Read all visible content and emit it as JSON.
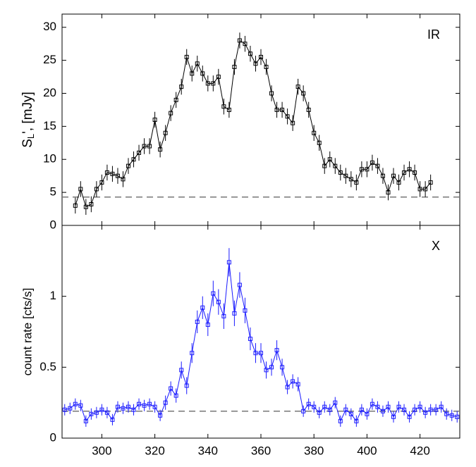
{
  "chart_data": [
    {
      "type": "line",
      "annotation": "IR",
      "ylabel": {
        "main": "S",
        "sub": "L",
        "rest": "', [mJy]"
      },
      "xlim": [
        285,
        435
      ],
      "xticks": [
        300,
        320,
        340,
        360,
        380,
        400,
        420
      ],
      "show_xtick_labels": false,
      "ylim": [
        0,
        32
      ],
      "yticks": [
        0,
        5,
        10,
        15,
        20,
        25,
        30
      ],
      "baseline": 4.3,
      "series": [
        {
          "name": "IR",
          "color": "#000000",
          "x": [
            290,
            292,
            294,
            296,
            298,
            300,
            302,
            304,
            306,
            308,
            310,
            312,
            314,
            316,
            318,
            320,
            322,
            324,
            326,
            328,
            330,
            332,
            334,
            336,
            338,
            340,
            342,
            344,
            346,
            348,
            350,
            352,
            354,
            356,
            358,
            360,
            362,
            364,
            366,
            368,
            370,
            372,
            374,
            376,
            378,
            380,
            382,
            384,
            386,
            388,
            390,
            392,
            394,
            396,
            398,
            400,
            402,
            404,
            406,
            408,
            410,
            412,
            414,
            416,
            418,
            420,
            422,
            424
          ],
          "values": [
            3,
            5.5,
            2.8,
            3.2,
            5.5,
            6.5,
            8,
            7.8,
            7.5,
            7,
            9,
            10,
            11,
            12,
            12,
            16,
            11.5,
            14,
            17,
            19,
            21,
            25.5,
            23,
            24.5,
            23,
            21.5,
            21.5,
            22.5,
            18,
            17.5,
            24,
            28,
            27.5,
            26,
            24.5,
            25.5,
            24,
            20,
            17.5,
            17.5,
            16.5,
            15.5,
            21,
            20,
            17.5,
            14,
            12.5,
            9,
            10,
            9,
            8,
            7.5,
            7,
            6.5,
            8.5,
            8.5,
            9.5,
            9,
            7.5,
            5,
            7.5,
            6.5,
            8,
            8.5,
            8,
            5.5,
            5.5,
            6.5
          ],
          "errors": [
            1.2,
            1.2,
            1.2,
            1.2,
            1.2,
            1.2,
            1.2,
            1.2,
            1.2,
            1.2,
            1.2,
            1.2,
            1.2,
            1.2,
            1.2,
            1.2,
            1.2,
            1.2,
            1.2,
            1.2,
            1.2,
            1.2,
            1.2,
            1.2,
            1.2,
            1.2,
            1.2,
            1.2,
            1.2,
            1.2,
            1.2,
            1.2,
            1.2,
            1.2,
            1.2,
            1.2,
            1.2,
            1.2,
            1.2,
            1.2,
            1.2,
            1.2,
            1.2,
            1.2,
            1.2,
            1.2,
            1.2,
            1.2,
            1.2,
            1.2,
            1.2,
            1.2,
            1.2,
            1.2,
            1.2,
            1.2,
            1.2,
            1.2,
            1.2,
            1.2,
            1.2,
            1.2,
            1.2,
            1.2,
            1.2,
            1.2,
            1.2,
            1.2
          ]
        }
      ]
    },
    {
      "type": "line",
      "annotation": "X",
      "ylabel": "count rate [cts/s]",
      "xlim": [
        285,
        435
      ],
      "xticks": [
        300,
        320,
        340,
        360,
        380,
        400,
        420
      ],
      "show_xtick_labels": true,
      "ylim": [
        0,
        1.5
      ],
      "yticks": [
        0,
        0.5,
        1
      ],
      "baseline": 0.19,
      "series": [
        {
          "name": "X",
          "color": "#1a1aff",
          "x": [
            286,
            288,
            290,
            292,
            294,
            296,
            298,
            300,
            302,
            304,
            306,
            308,
            310,
            312,
            314,
            316,
            318,
            320,
            322,
            324,
            326,
            328,
            330,
            332,
            334,
            336,
            338,
            340,
            342,
            344,
            346,
            348,
            350,
            352,
            354,
            356,
            358,
            360,
            362,
            364,
            366,
            368,
            370,
            372,
            374,
            376,
            378,
            380,
            382,
            384,
            386,
            388,
            390,
            392,
            394,
            396,
            398,
            400,
            402,
            404,
            406,
            408,
            410,
            412,
            414,
            416,
            418,
            420,
            422,
            424,
            426,
            428,
            430,
            432,
            434
          ],
          "values": [
            0.2,
            0.21,
            0.24,
            0.23,
            0.12,
            0.17,
            0.18,
            0.2,
            0.18,
            0.13,
            0.22,
            0.21,
            0.22,
            0.2,
            0.24,
            0.23,
            0.24,
            0.22,
            0.16,
            0.25,
            0.35,
            0.3,
            0.48,
            0.37,
            0.6,
            0.82,
            0.92,
            0.8,
            1.02,
            0.96,
            0.86,
            1.24,
            0.88,
            1.08,
            0.9,
            0.7,
            0.6,
            0.6,
            0.48,
            0.5,
            0.62,
            0.5,
            0.36,
            0.4,
            0.38,
            0.19,
            0.24,
            0.22,
            0.18,
            0.22,
            0.2,
            0.25,
            0.12,
            0.2,
            0.17,
            0.12,
            0.2,
            0.17,
            0.24,
            0.22,
            0.19,
            0.22,
            0.15,
            0.22,
            0.2,
            0.15,
            0.2,
            0.22,
            0.18,
            0.2,
            0.2,
            0.22,
            0.17,
            0.16,
            0.15
          ],
          "errors": [
            0.04,
            0.04,
            0.04,
            0.04,
            0.04,
            0.04,
            0.04,
            0.04,
            0.04,
            0.04,
            0.04,
            0.04,
            0.04,
            0.04,
            0.04,
            0.04,
            0.04,
            0.04,
            0.04,
            0.05,
            0.05,
            0.05,
            0.06,
            0.06,
            0.07,
            0.08,
            0.08,
            0.08,
            0.09,
            0.09,
            0.09,
            0.1,
            0.09,
            0.09,
            0.09,
            0.08,
            0.07,
            0.07,
            0.06,
            0.06,
            0.07,
            0.06,
            0.05,
            0.05,
            0.05,
            0.04,
            0.04,
            0.04,
            0.04,
            0.04,
            0.04,
            0.04,
            0.04,
            0.04,
            0.04,
            0.04,
            0.04,
            0.04,
            0.04,
            0.04,
            0.04,
            0.04,
            0.04,
            0.04,
            0.04,
            0.04,
            0.04,
            0.04,
            0.04,
            0.04,
            0.04,
            0.04,
            0.04,
            0.04,
            0.04
          ]
        }
      ]
    }
  ]
}
